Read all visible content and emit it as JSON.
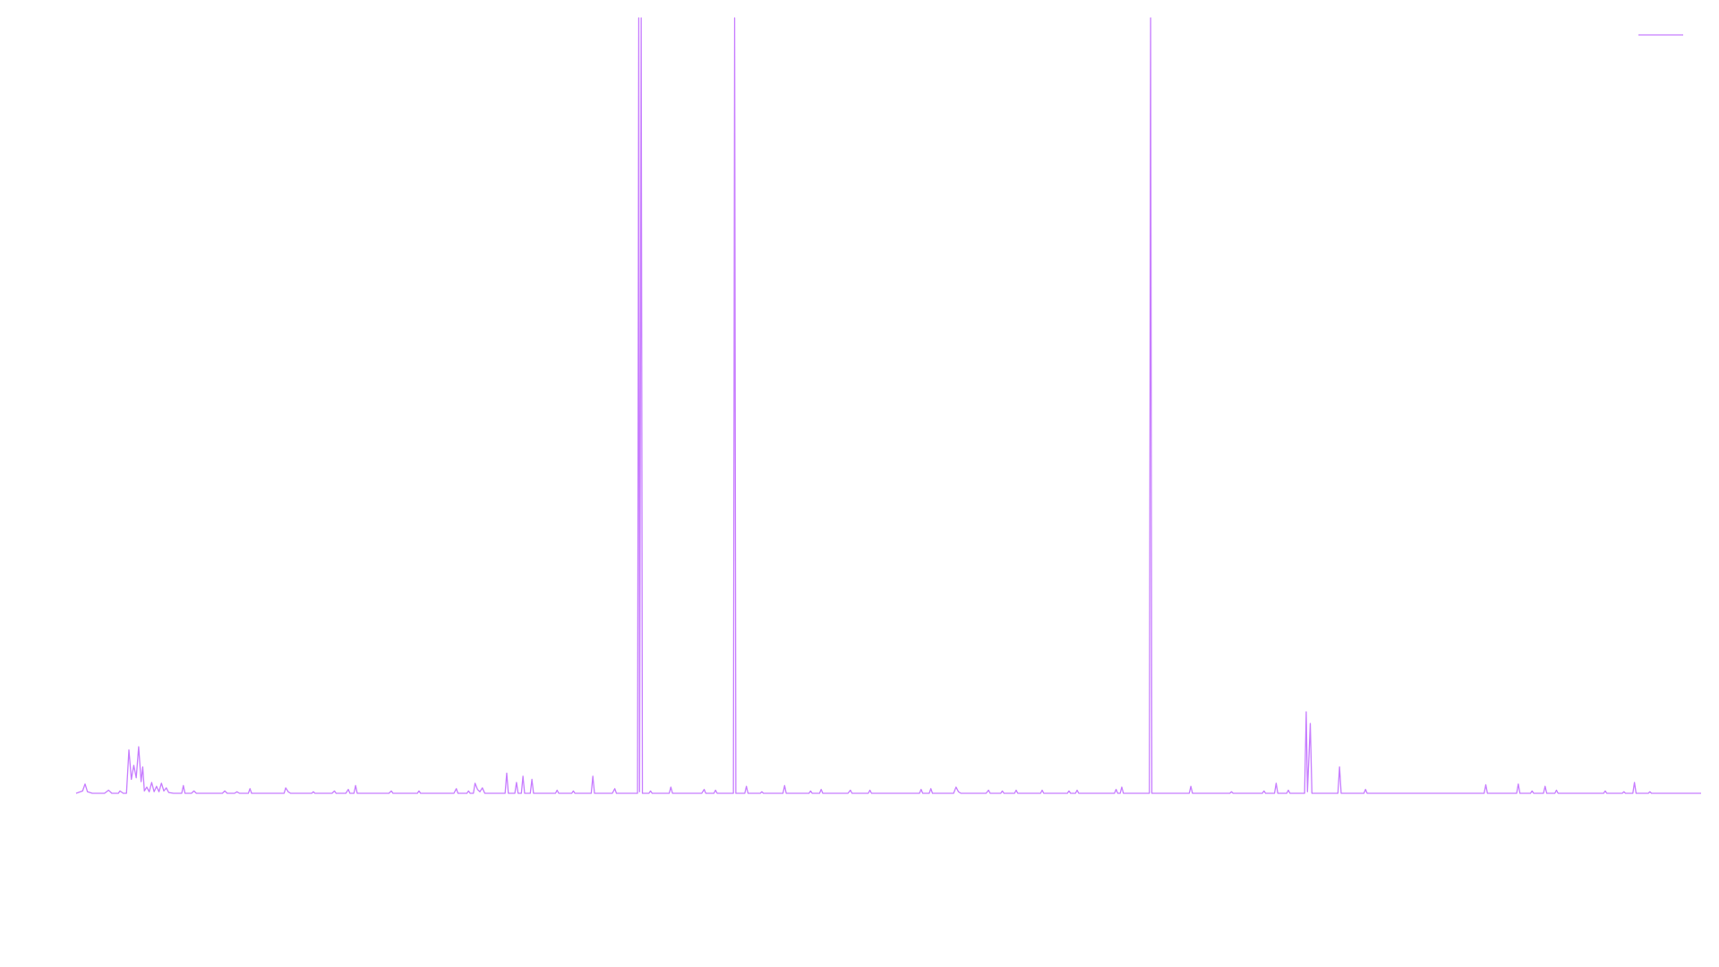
{
  "colors": {
    "background": "#ffffff",
    "series_line": "#c77dff"
  },
  "chart_data": {
    "type": "line",
    "title": "",
    "xlabel": "",
    "ylabel": "",
    "grid": false,
    "legend": "top-right",
    "x_range": [
      0,
      200
    ],
    "ylim": [
      0,
      100
    ],
    "series": [
      {
        "color": "#c77dff",
        "points": [
          [
            0.0,
            0.0
          ],
          [
            0.8,
            0.3
          ],
          [
            1.1,
            1.2
          ],
          [
            1.4,
            0.2
          ],
          [
            2.0,
            0.0
          ],
          [
            3.5,
            0.0
          ],
          [
            4.0,
            0.4
          ],
          [
            4.4,
            0.0
          ],
          [
            5.2,
            0.0
          ],
          [
            5.4,
            0.3
          ],
          [
            5.8,
            0.0
          ],
          [
            6.2,
            0.0
          ],
          [
            6.5,
            5.6
          ],
          [
            6.8,
            1.8
          ],
          [
            7.1,
            3.6
          ],
          [
            7.4,
            2.0
          ],
          [
            7.7,
            6.0
          ],
          [
            8.0,
            1.5
          ],
          [
            8.2,
            3.4
          ],
          [
            8.4,
            0.3
          ],
          [
            8.7,
            0.8
          ],
          [
            9.0,
            0.2
          ],
          [
            9.3,
            1.4
          ],
          [
            9.6,
            0.2
          ],
          [
            9.9,
            0.9
          ],
          [
            10.2,
            0.2
          ],
          [
            10.5,
            1.3
          ],
          [
            10.8,
            0.3
          ],
          [
            11.1,
            0.7
          ],
          [
            11.4,
            0.1
          ],
          [
            12.0,
            0.0
          ],
          [
            13.0,
            0.0
          ],
          [
            13.2,
            1.0
          ],
          [
            13.4,
            0.0
          ],
          [
            14.2,
            0.0
          ],
          [
            14.5,
            0.3
          ],
          [
            14.8,
            0.0
          ],
          [
            18.0,
            0.0
          ],
          [
            18.3,
            0.3
          ],
          [
            18.6,
            0.0
          ],
          [
            19.5,
            0.0
          ],
          [
            19.8,
            0.2
          ],
          [
            20.1,
            0.0
          ],
          [
            21.2,
            0.0
          ],
          [
            21.4,
            0.6
          ],
          [
            21.6,
            0.0
          ],
          [
            25.6,
            0.0
          ],
          [
            25.8,
            0.7
          ],
          [
            26.1,
            0.2
          ],
          [
            26.4,
            0.0
          ],
          [
            29.0,
            0.0
          ],
          [
            29.2,
            0.2
          ],
          [
            29.4,
            0.0
          ],
          [
            31.5,
            0.0
          ],
          [
            31.8,
            0.3
          ],
          [
            32.0,
            0.0
          ],
          [
            33.2,
            0.0
          ],
          [
            33.5,
            0.5
          ],
          [
            33.7,
            0.0
          ],
          [
            34.2,
            0.0
          ],
          [
            34.4,
            1.0
          ],
          [
            34.6,
            0.0
          ],
          [
            38.5,
            0.0
          ],
          [
            38.8,
            0.3
          ],
          [
            39.0,
            0.0
          ],
          [
            42.0,
            0.0
          ],
          [
            42.2,
            0.3
          ],
          [
            42.4,
            0.0
          ],
          [
            46.5,
            0.0
          ],
          [
            46.8,
            0.6
          ],
          [
            47.0,
            0.0
          ],
          [
            48.1,
            0.0
          ],
          [
            48.3,
            0.3
          ],
          [
            48.5,
            0.0
          ],
          [
            48.9,
            0.0
          ],
          [
            49.1,
            1.3
          ],
          [
            49.4,
            0.5
          ],
          [
            49.7,
            0.2
          ],
          [
            50.0,
            0.7
          ],
          [
            50.3,
            0.0
          ],
          [
            52.8,
            0.0
          ],
          [
            53.0,
            2.6
          ],
          [
            53.2,
            0.0
          ],
          [
            54.0,
            0.0
          ],
          [
            54.2,
            1.4
          ],
          [
            54.4,
            0.0
          ],
          [
            54.8,
            0.0
          ],
          [
            55.0,
            2.2
          ],
          [
            55.2,
            0.0
          ],
          [
            55.9,
            0.0
          ],
          [
            56.1,
            1.8
          ],
          [
            56.3,
            0.0
          ],
          [
            59.0,
            0.0
          ],
          [
            59.2,
            0.4
          ],
          [
            59.4,
            0.0
          ],
          [
            61.0,
            0.0
          ],
          [
            61.2,
            0.3
          ],
          [
            61.4,
            0.0
          ],
          [
            63.4,
            0.0
          ],
          [
            63.6,
            2.2
          ],
          [
            63.8,
            0.0
          ],
          [
            66.0,
            0.0
          ],
          [
            66.3,
            0.6
          ],
          [
            66.5,
            0.0
          ],
          [
            68.5,
            0.0
          ],
          [
            69.1,
            0.0
          ],
          [
            69.25,
            100.0
          ],
          [
            69.35,
            0.2
          ],
          [
            69.55,
            100.0
          ],
          [
            69.7,
            0.0
          ],
          [
            70.5,
            0.0
          ],
          [
            70.7,
            0.3
          ],
          [
            70.9,
            0.0
          ],
          [
            73.0,
            0.0
          ],
          [
            73.2,
            0.8
          ],
          [
            73.4,
            0.0
          ],
          [
            77.0,
            0.0
          ],
          [
            77.3,
            0.5
          ],
          [
            77.5,
            0.0
          ],
          [
            78.5,
            0.0
          ],
          [
            78.7,
            0.4
          ],
          [
            78.9,
            0.0
          ],
          [
            80.9,
            0.0
          ],
          [
            81.05,
            100.0
          ],
          [
            81.2,
            0.0
          ],
          [
            82.3,
            0.0
          ],
          [
            82.5,
            0.9
          ],
          [
            82.7,
            0.0
          ],
          [
            84.2,
            0.0
          ],
          [
            84.4,
            0.2
          ],
          [
            84.6,
            0.0
          ],
          [
            87.0,
            0.0
          ],
          [
            87.2,
            1.0
          ],
          [
            87.4,
            0.0
          ],
          [
            90.2,
            0.0
          ],
          [
            90.4,
            0.3
          ],
          [
            90.6,
            0.0
          ],
          [
            91.5,
            0.0
          ],
          [
            91.7,
            0.5
          ],
          [
            91.9,
            0.0
          ],
          [
            95.0,
            0.0
          ],
          [
            95.3,
            0.4
          ],
          [
            95.5,
            0.0
          ],
          [
            97.5,
            0.0
          ],
          [
            97.7,
            0.4
          ],
          [
            97.9,
            0.0
          ],
          [
            103.8,
            0.0
          ],
          [
            104.0,
            0.5
          ],
          [
            104.2,
            0.0
          ],
          [
            105.0,
            0.0
          ],
          [
            105.2,
            0.6
          ],
          [
            105.4,
            0.0
          ],
          [
            108.0,
            0.0
          ],
          [
            108.3,
            0.8
          ],
          [
            108.6,
            0.2
          ],
          [
            108.9,
            0.0
          ],
          [
            112.0,
            0.0
          ],
          [
            112.3,
            0.4
          ],
          [
            112.5,
            0.0
          ],
          [
            113.8,
            0.0
          ],
          [
            114.0,
            0.3
          ],
          [
            114.2,
            0.0
          ],
          [
            115.5,
            0.0
          ],
          [
            115.7,
            0.4
          ],
          [
            115.9,
            0.0
          ],
          [
            118.7,
            0.0
          ],
          [
            118.9,
            0.4
          ],
          [
            119.1,
            0.0
          ],
          [
            122.0,
            0.0
          ],
          [
            122.2,
            0.3
          ],
          [
            122.4,
            0.0
          ],
          [
            123.0,
            0.0
          ],
          [
            123.2,
            0.4
          ],
          [
            123.4,
            0.0
          ],
          [
            127.8,
            0.0
          ],
          [
            128.0,
            0.5
          ],
          [
            128.2,
            0.0
          ],
          [
            128.5,
            0.0
          ],
          [
            128.7,
            0.8
          ],
          [
            128.9,
            0.0
          ],
          [
            132.1,
            0.0
          ],
          [
            132.25,
            100.0
          ],
          [
            132.4,
            0.0
          ],
          [
            137.0,
            0.0
          ],
          [
            137.2,
            0.9
          ],
          [
            137.4,
            0.0
          ],
          [
            142.0,
            0.0
          ],
          [
            142.2,
            0.2
          ],
          [
            142.4,
            0.0
          ],
          [
            146.0,
            0.0
          ],
          [
            146.2,
            0.3
          ],
          [
            146.4,
            0.0
          ],
          [
            147.5,
            0.0
          ],
          [
            147.7,
            1.3
          ],
          [
            147.9,
            0.0
          ],
          [
            149.0,
            0.0
          ],
          [
            149.2,
            0.4
          ],
          [
            149.4,
            0.0
          ],
          [
            151.2,
            0.0
          ],
          [
            151.4,
            10.5
          ],
          [
            151.55,
            0.2
          ],
          [
            151.75,
            5.0
          ],
          [
            151.9,
            9.0
          ],
          [
            152.1,
            0.0
          ],
          [
            155.3,
            0.0
          ],
          [
            155.5,
            3.4
          ],
          [
            155.7,
            0.0
          ],
          [
            158.5,
            0.0
          ],
          [
            158.7,
            0.5
          ],
          [
            158.9,
            0.0
          ],
          [
            173.3,
            0.0
          ],
          [
            173.5,
            1.1
          ],
          [
            173.7,
            0.0
          ],
          [
            177.3,
            0.0
          ],
          [
            177.5,
            1.2
          ],
          [
            177.7,
            0.0
          ],
          [
            179.0,
            0.0
          ],
          [
            179.2,
            0.3
          ],
          [
            179.4,
            0.0
          ],
          [
            180.6,
            0.0
          ],
          [
            180.8,
            0.9
          ],
          [
            181.0,
            0.0
          ],
          [
            182.0,
            0.0
          ],
          [
            182.2,
            0.4
          ],
          [
            182.4,
            0.0
          ],
          [
            188.0,
            0.0
          ],
          [
            188.2,
            0.3
          ],
          [
            188.4,
            0.0
          ],
          [
            190.3,
            0.0
          ],
          [
            190.5,
            0.2
          ],
          [
            190.7,
            0.0
          ],
          [
            191.6,
            0.0
          ],
          [
            191.8,
            1.4
          ],
          [
            192.0,
            0.0
          ],
          [
            193.5,
            0.0
          ],
          [
            193.7,
            0.2
          ],
          [
            193.9,
            0.0
          ],
          [
            200.0,
            0.0
          ]
        ]
      }
    ]
  }
}
